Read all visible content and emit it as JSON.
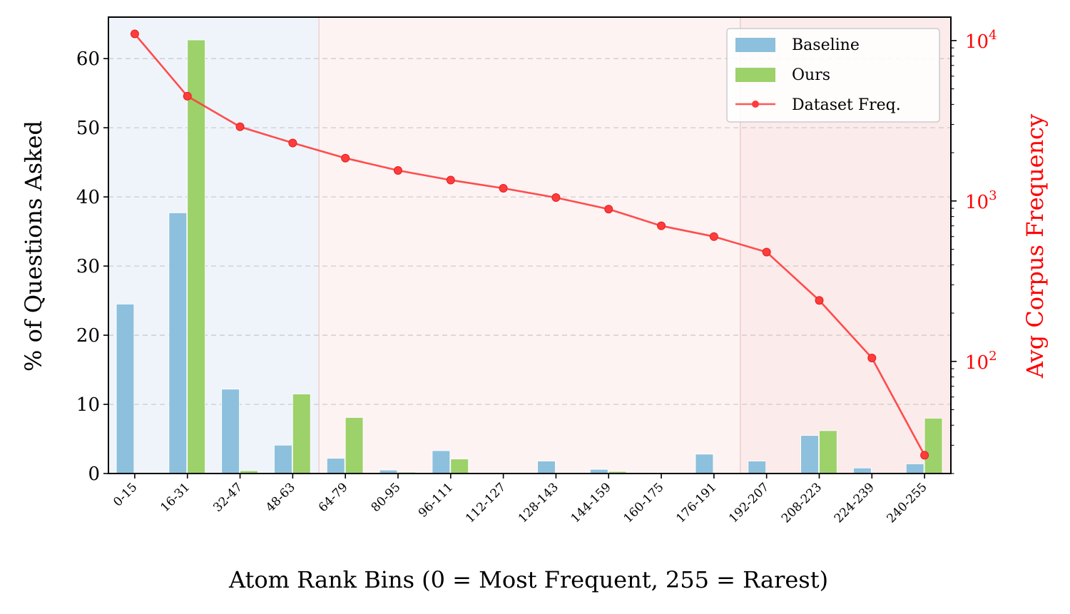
{
  "chart_data": {
    "type": "bar",
    "xlabel": "Atom Rank Bins (0 = Most Frequent, 255 = Rarest)",
    "ylabel": "% of Questions Asked",
    "y2label": "Avg Corpus Frequency",
    "ylim": [
      0,
      66
    ],
    "y2lim": [
      20,
      14000
    ],
    "y2scale": "log",
    "yticks": [
      0,
      10,
      20,
      30,
      40,
      50,
      60
    ],
    "y2ticks": [
      100,
      1000,
      10000
    ],
    "y2ticklabels": [
      "10^2",
      "10^3",
      "10^4"
    ],
    "grid": "y dashed",
    "legend_position": "top-right",
    "categories": [
      "0-15",
      "16-31",
      "32-47",
      "48-63",
      "64-79",
      "80-95",
      "96-111",
      "112-127",
      "128-143",
      "144-159",
      "160-175",
      "176-191",
      "192-207",
      "208-223",
      "224-239",
      "240-255"
    ],
    "series": [
      {
        "name": "Baseline",
        "kind": "bar",
        "axis": "left",
        "color": "#8dc0dc",
        "values": [
          24.5,
          37.7,
          12.2,
          4.1,
          2.2,
          0.5,
          3.3,
          0.0,
          1.8,
          0.6,
          0.1,
          2.8,
          1.8,
          5.5,
          0.8,
          1.4
        ]
      },
      {
        "name": "Ours",
        "kind": "bar",
        "axis": "left",
        "color": "#9dd16a",
        "values": [
          0.0,
          62.7,
          0.4,
          11.5,
          8.1,
          0.2,
          2.1,
          0.0,
          0.0,
          0.3,
          0.0,
          0.0,
          0.0,
          6.2,
          0.0,
          8.0
        ]
      },
      {
        "name": "Dataset Freq.",
        "kind": "line",
        "axis": "right",
        "color": "#ff3b3b",
        "values": [
          11000,
          4500,
          2900,
          2300,
          1850,
          1550,
          1350,
          1200,
          1050,
          890,
          700,
          600,
          480,
          240,
          105,
          26
        ]
      }
    ],
    "regions": [
      {
        "from": "0-15",
        "to": "48-63",
        "color": "#dfe9f5"
      },
      {
        "from": "64-79",
        "to": "176-191",
        "color": "#fde7e7"
      },
      {
        "from": "192-207",
        "to": "240-255",
        "color": "#fad8d8"
      }
    ]
  }
}
